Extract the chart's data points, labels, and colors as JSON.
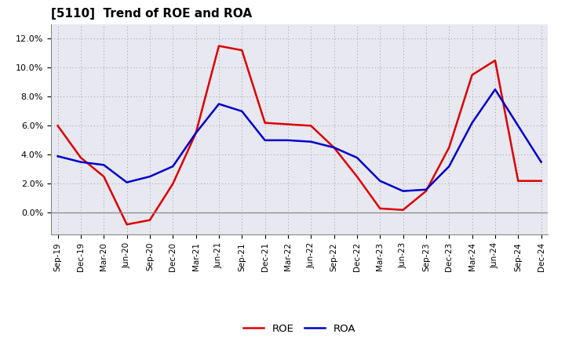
{
  "title": "[5110]  Trend of ROE and ROA",
  "x_labels": [
    "Sep-19",
    "Dec-19",
    "Mar-20",
    "Jun-20",
    "Sep-20",
    "Dec-20",
    "Mar-21",
    "Jun-21",
    "Sep-21",
    "Dec-21",
    "Mar-22",
    "Jun-22",
    "Sep-22",
    "Dec-22",
    "Mar-23",
    "Jun-23",
    "Sep-23",
    "Dec-23",
    "Mar-24",
    "Jun-24",
    "Sep-24",
    "Dec-24"
  ],
  "roe": [
    6.0,
    3.8,
    2.5,
    -0.8,
    -0.5,
    2.0,
    5.5,
    11.5,
    11.2,
    6.2,
    6.1,
    6.0,
    4.5,
    2.5,
    0.3,
    0.2,
    1.5,
    4.5,
    9.5,
    10.5,
    2.2,
    2.2
  ],
  "roa": [
    3.9,
    3.5,
    3.3,
    2.1,
    2.5,
    3.2,
    5.5,
    7.5,
    7.0,
    5.0,
    5.0,
    4.9,
    4.5,
    3.8,
    2.2,
    1.5,
    1.6,
    3.2,
    6.2,
    8.5,
    6.0,
    3.5
  ],
  "roe_color": "#dd0000",
  "roa_color": "#0000cc",
  "background_color": "#ffffff",
  "plot_bg_color": "#e8e8f0",
  "grid_color": "#aaaaaa",
  "ylim": [
    -1.5,
    13.0
  ],
  "yticks": [
    0.0,
    2.0,
    4.0,
    6.0,
    8.0,
    10.0,
    12.0
  ]
}
